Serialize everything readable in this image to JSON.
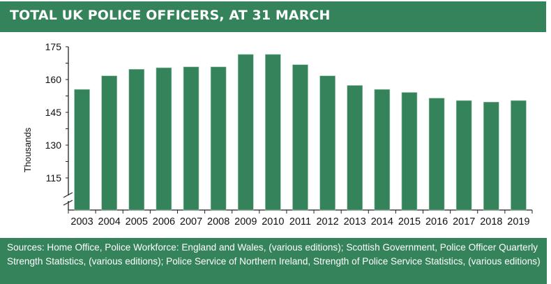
{
  "chart_data": {
    "type": "bar",
    "title": "TOTAL UK POLICE OFFICERS, AT 31 MARCH",
    "xlabel": "",
    "ylabel": "Thousands",
    "ylim": [
      100,
      175
    ],
    "y_axis_break": true,
    "yticks": [
      175,
      160,
      145,
      130,
      115
    ],
    "categories": [
      "2003",
      "2004",
      "2005",
      "2006",
      "2007",
      "2008",
      "2009",
      "2010",
      "2011",
      "2012",
      "2013",
      "2014",
      "2015",
      "2016",
      "2017",
      "2018",
      "2019"
    ],
    "values": [
      155.5,
      161.7,
      164.7,
      165.4,
      165.8,
      165.8,
      171.5,
      171.5,
      166.8,
      161.7,
      157.3,
      155.5,
      154.1,
      151.5,
      150.4,
      149.7,
      150.4
    ],
    "grid": false,
    "bar_color": "#35835a"
  },
  "footer": {
    "sources": "Sources: Home Office, Police Workforce: England and Wales, (various editions);  Scottish Government, Police Officer Quarterly Strength Statistics, (various editions);  Police Service of Northern Ireland, Strength of Police Service Statistics, (various editions)"
  }
}
